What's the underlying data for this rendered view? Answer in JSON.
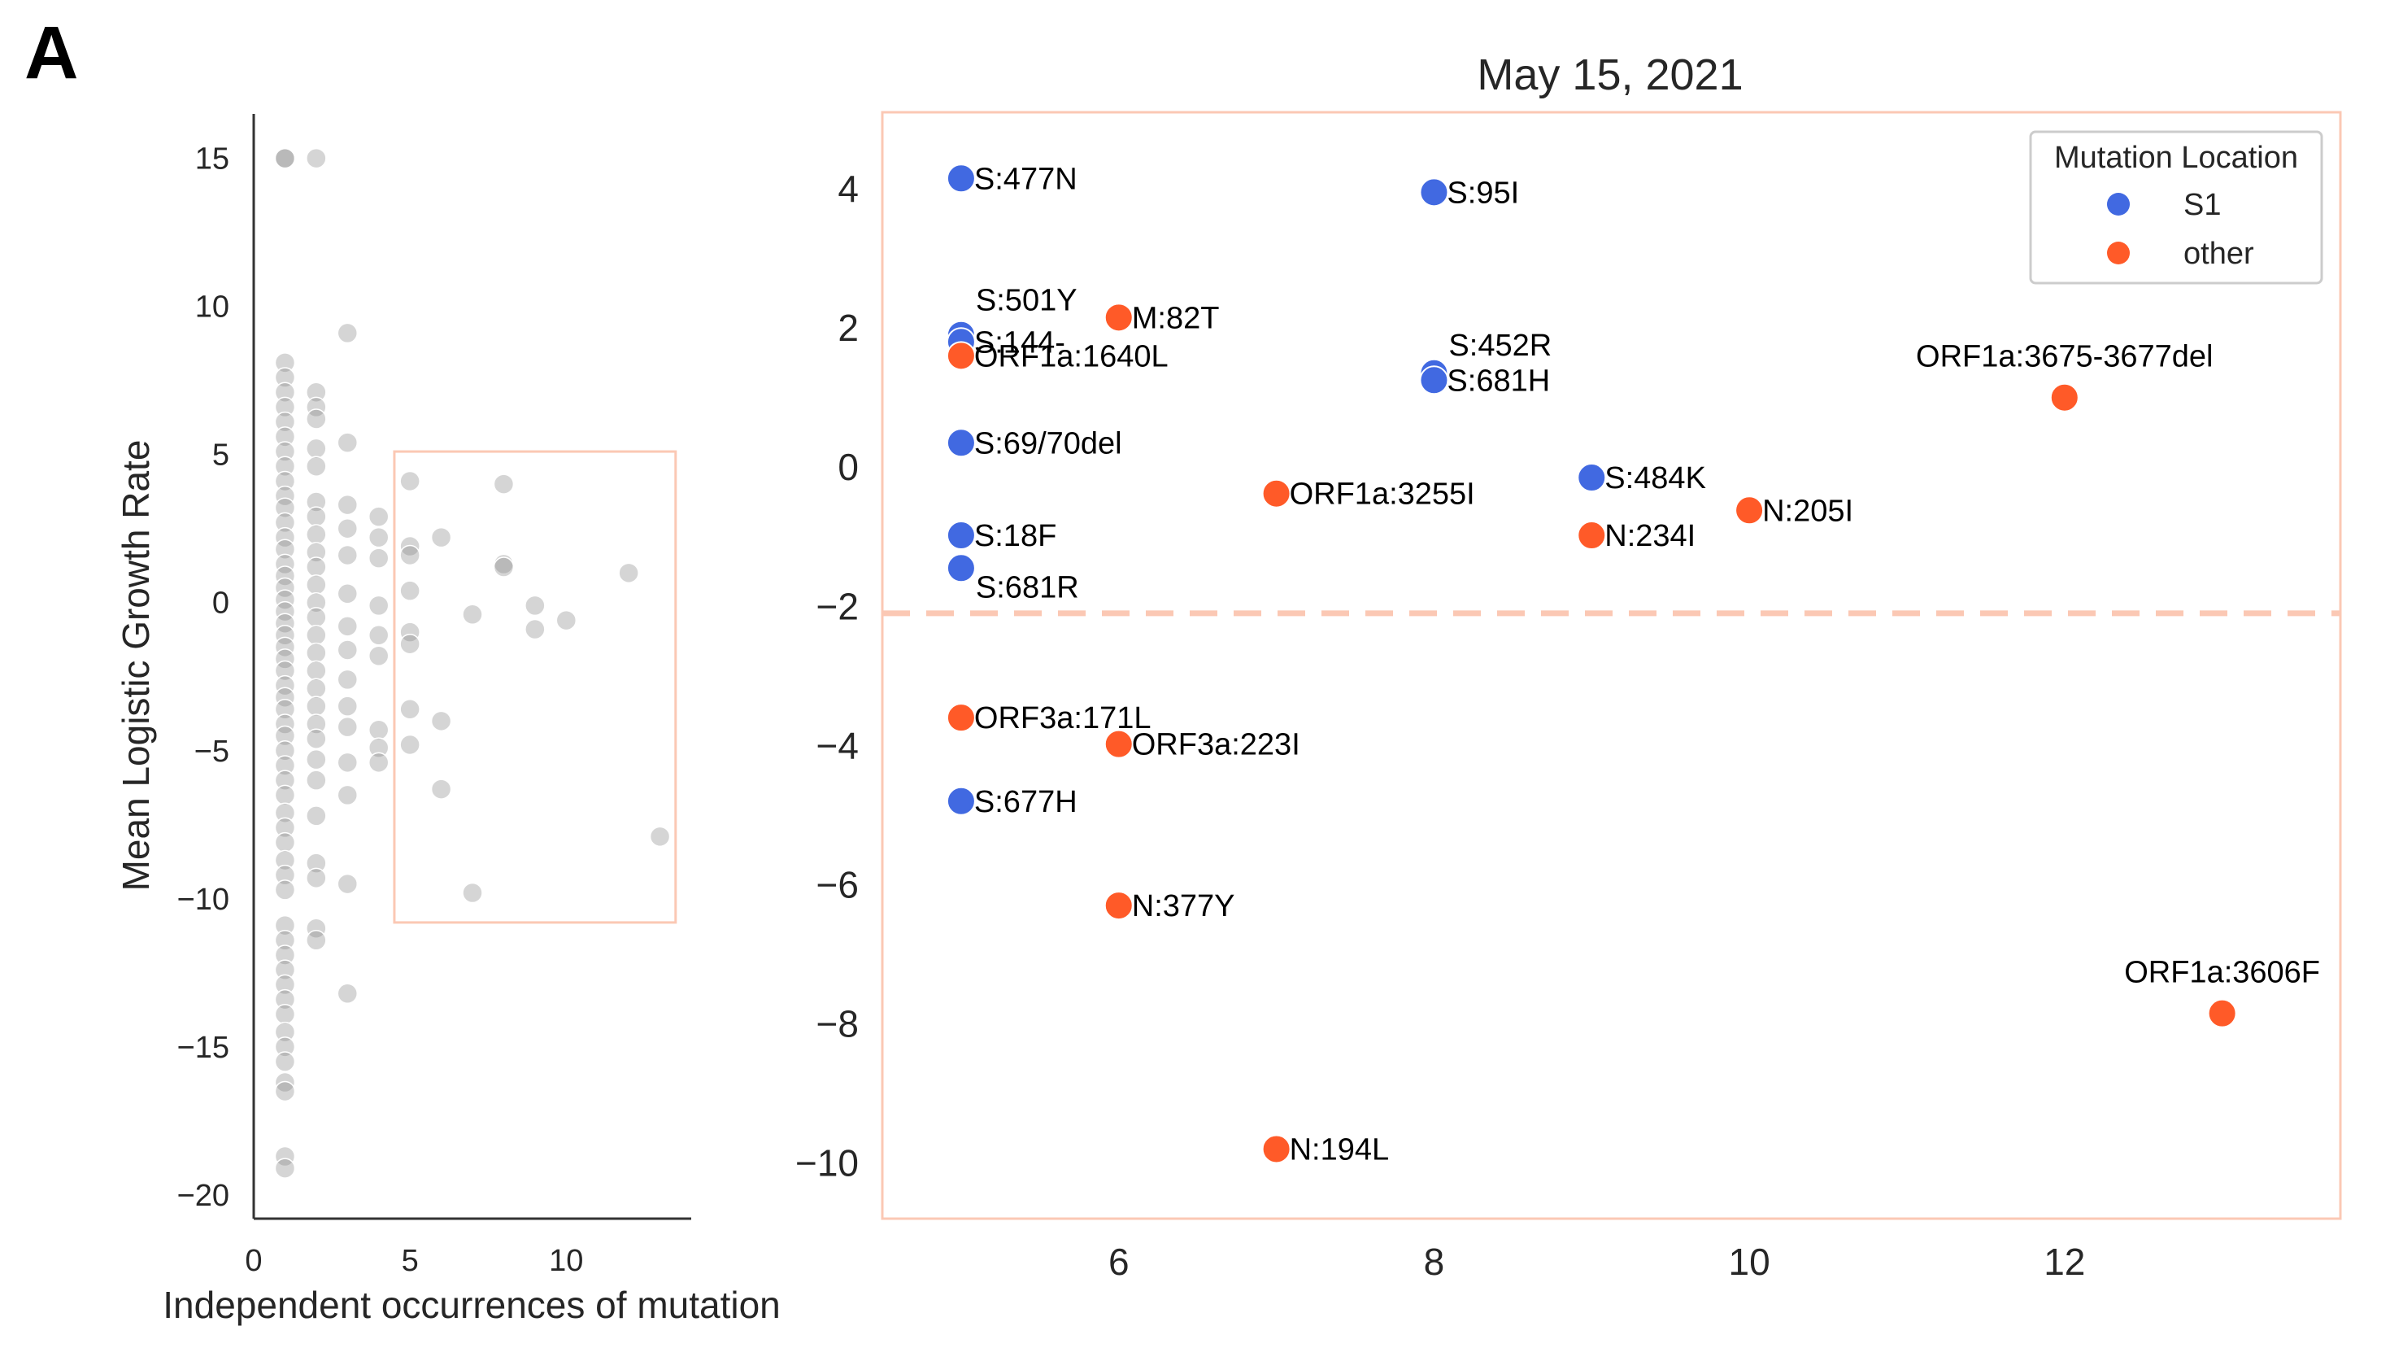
{
  "panel_label": "A",
  "chart_data": [
    {
      "type": "scatter",
      "xlabel": "Independent occurrences of mutation",
      "ylabel": "Mean Logistic Growth Rate",
      "xlim": [
        0,
        14
      ],
      "ylim": [
        -20.8,
        16.5
      ],
      "xticks": [
        0,
        5,
        10
      ],
      "yticks": [
        15,
        10,
        5,
        0,
        -5,
        -10,
        -15,
        -20
      ],
      "xtick_labels": [
        "0",
        "5",
        "10"
      ],
      "ytick_labels": [
        "15",
        "10",
        "5",
        "0",
        "−5",
        "−10",
        "−15",
        "−20"
      ],
      "point_color": "#808080",
      "highlight_box": {
        "x": [
          4.5,
          13.5
        ],
        "y": [
          -10.8,
          5.1
        ],
        "color": "#fbc8b4"
      },
      "points": [
        [
          1,
          15
        ],
        [
          1,
          15
        ],
        [
          2,
          15
        ],
        [
          1,
          8.1
        ],
        [
          1,
          7.6
        ],
        [
          1,
          7.1
        ],
        [
          1,
          6.6
        ],
        [
          1,
          6.1
        ],
        [
          1,
          5.6
        ],
        [
          1,
          5.1
        ],
        [
          1,
          4.6
        ],
        [
          1,
          4.1
        ],
        [
          1,
          3.6
        ],
        [
          1,
          3.2
        ],
        [
          1,
          2.7
        ],
        [
          1,
          2.2
        ],
        [
          1,
          1.8
        ],
        [
          1,
          1.3
        ],
        [
          1,
          0.9
        ],
        [
          1,
          0.5
        ],
        [
          1,
          0.1
        ],
        [
          1,
          -0.3
        ],
        [
          1,
          -0.7
        ],
        [
          1,
          -1.1
        ],
        [
          1,
          -1.5
        ],
        [
          1,
          -1.9
        ],
        [
          1,
          -2.3
        ],
        [
          1,
          -2.8
        ],
        [
          1,
          -3.2
        ],
        [
          1,
          -3.6
        ],
        [
          1,
          -4.1
        ],
        [
          1,
          -4.5
        ],
        [
          1,
          -5
        ],
        [
          1,
          -5.5
        ],
        [
          1,
          -6
        ],
        [
          1,
          -6.5
        ],
        [
          1,
          -7.1
        ],
        [
          1,
          -7.6
        ],
        [
          1,
          -8.1
        ],
        [
          1,
          -8.7
        ],
        [
          1,
          -9.2
        ],
        [
          1,
          -9.7
        ],
        [
          1,
          -10.9
        ],
        [
          1,
          -11.4
        ],
        [
          1,
          -11.9
        ],
        [
          1,
          -12.4
        ],
        [
          1,
          -12.9
        ],
        [
          1,
          -13.4
        ],
        [
          1,
          -13.9
        ],
        [
          1,
          -14.5
        ],
        [
          1,
          -15
        ],
        [
          1,
          -15.5
        ],
        [
          1,
          -16.2
        ],
        [
          1,
          -16.5
        ],
        [
          1,
          -18.7
        ],
        [
          1,
          -19.1
        ],
        [
          2,
          7.1
        ],
        [
          2,
          6.6
        ],
        [
          2,
          6.2
        ],
        [
          2,
          5.2
        ],
        [
          2,
          4.6
        ],
        [
          2,
          3.4
        ],
        [
          2,
          2.9
        ],
        [
          2,
          2.3
        ],
        [
          2,
          1.7
        ],
        [
          2,
          1.2
        ],
        [
          2,
          0.6
        ],
        [
          2,
          0
        ],
        [
          2,
          -0.5
        ],
        [
          2,
          -1.1
        ],
        [
          2,
          -1.7
        ],
        [
          2,
          -2.3
        ],
        [
          2,
          -2.9
        ],
        [
          2,
          -3.5
        ],
        [
          2,
          -4.1
        ],
        [
          2,
          -4.6
        ],
        [
          2,
          -5.3
        ],
        [
          2,
          -6
        ],
        [
          2,
          -7.2
        ],
        [
          2,
          -8.8
        ],
        [
          2,
          -9.3
        ],
        [
          2,
          -11
        ],
        [
          2,
          -11.4
        ],
        [
          3,
          9.1
        ],
        [
          3,
          5.4
        ],
        [
          3,
          3.3
        ],
        [
          3,
          2.5
        ],
        [
          3,
          1.6
        ],
        [
          3,
          0.3
        ],
        [
          3,
          -0.8
        ],
        [
          3,
          -1.6
        ],
        [
          3,
          -2.6
        ],
        [
          3,
          -3.5
        ],
        [
          3,
          -4.2
        ],
        [
          3,
          -5.4
        ],
        [
          3,
          -6.5
        ],
        [
          3,
          -9.5
        ],
        [
          3,
          -13.2
        ],
        [
          4,
          2.9
        ],
        [
          4,
          2.2
        ],
        [
          4,
          1.5
        ],
        [
          4,
          -0.1
        ],
        [
          4,
          -1.1
        ],
        [
          4,
          -1.8
        ],
        [
          4,
          -4.3
        ],
        [
          4,
          -4.9
        ],
        [
          4,
          -5.4
        ],
        [
          5,
          4.1
        ],
        [
          5,
          1.9
        ],
        [
          5,
          1.6
        ],
        [
          5,
          0.4
        ],
        [
          5,
          -1
        ],
        [
          5,
          -1.4
        ],
        [
          5,
          -3.6
        ],
        [
          5,
          -4.8
        ],
        [
          6,
          2.2
        ],
        [
          6,
          -4
        ],
        [
          6,
          -6.3
        ],
        [
          7,
          -0.4
        ],
        [
          7,
          -9.8
        ],
        [
          8,
          4
        ],
        [
          8,
          1.3
        ],
        [
          8,
          1.2
        ],
        [
          9,
          -0.1
        ],
        [
          9,
          -0.9
        ],
        [
          10,
          -0.6
        ],
        [
          12,
          1
        ],
        [
          13,
          -7.9
        ]
      ]
    },
    {
      "type": "scatter",
      "title": "May 15, 2021",
      "xlabel": "",
      "ylabel": "",
      "xlim": [
        4.5,
        13.75
      ],
      "ylim": [
        -10.8,
        5.1
      ],
      "xticks": [
        6,
        8,
        10,
        12
      ],
      "yticks": [
        4,
        2,
        0,
        -2,
        -4,
        -6,
        -8,
        -10
      ],
      "xtick_labels": [
        "6",
        "8",
        "10",
        "12"
      ],
      "ytick_labels": [
        "4",
        "2",
        "0",
        "−2",
        "−4",
        "−6",
        "−8",
        "−10"
      ],
      "threshold_y": -2.1,
      "threshold_color": "#fbc8b4",
      "frame_color": "#fbc8b4",
      "legend": {
        "title": "Mutation Location",
        "placement": "top-right",
        "entries": [
          {
            "label": "S1",
            "color": "#4169e1"
          },
          {
            "label": "other",
            "color": "#ff5a28"
          }
        ]
      },
      "series": [
        {
          "name": "S1",
          "color": "#4169e1",
          "points": [
            {
              "x": 5,
              "y": 4.15,
              "label": "S:477N"
            },
            {
              "x": 8,
              "y": 3.95,
              "label": "S:95I"
            },
            {
              "x": 5,
              "y": 1.9,
              "label": "S:501Y"
            },
            {
              "x": 5,
              "y": 1.8,
              "label": "S:144-"
            },
            {
              "x": 8,
              "y": 1.35,
              "label": "S:452R"
            },
            {
              "x": 8,
              "y": 1.25,
              "label": "S:681H"
            },
            {
              "x": 5,
              "y": 0.35,
              "label": "S:69/70del"
            },
            {
              "x": 9,
              "y": -0.15,
              "label": "S:484K"
            },
            {
              "x": 5,
              "y": -0.98,
              "label": "S:18F"
            },
            {
              "x": 5,
              "y": -1.45,
              "label": "S:681R"
            },
            {
              "x": 5,
              "y": -4.8,
              "label": "S:677H"
            }
          ]
        },
        {
          "name": "other",
          "color": "#ff5a28",
          "points": [
            {
              "x": 6,
              "y": 2.15,
              "label": "M:82T"
            },
            {
              "x": 5,
              "y": 1.6,
              "label": "ORF1a:1640L"
            },
            {
              "x": 12,
              "y": 1.0,
              "label": "ORF1a:3675-3677del"
            },
            {
              "x": 7,
              "y": -0.38,
              "label": "ORF1a:3255I"
            },
            {
              "x": 10,
              "y": -0.62,
              "label": "N:205I"
            },
            {
              "x": 9,
              "y": -0.98,
              "label": "N:234I"
            },
            {
              "x": 5,
              "y": -3.6,
              "label": "ORF3a:171L"
            },
            {
              "x": 6,
              "y": -3.98,
              "label": "ORF3a:223I"
            },
            {
              "x": 6,
              "y": -6.3,
              "label": "N:377Y"
            },
            {
              "x": 13,
              "y": -7.85,
              "label": "ORF1a:3606F"
            },
            {
              "x": 7,
              "y": -9.8,
              "label": "N:194L"
            }
          ]
        }
      ]
    }
  ]
}
